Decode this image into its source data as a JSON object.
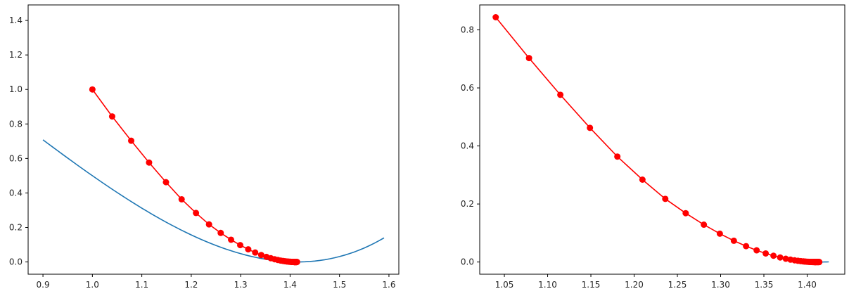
{
  "chart_data": [
    {
      "type": "line",
      "title": "",
      "xlabel": "",
      "ylabel": "",
      "xlim": [
        0.87,
        1.62
      ],
      "ylim": [
        -0.071,
        1.49
      ],
      "xticks": [
        0.9,
        1.0,
        1.1,
        1.2,
        1.3,
        1.4,
        1.5,
        1.6
      ],
      "xtick_labels": [
        "0.9",
        "1.0",
        "1.1",
        "1.2",
        "1.3",
        "1.4",
        "1.5",
        "1.6"
      ],
      "yticks": [
        0.0,
        0.2,
        0.4,
        0.6,
        0.8,
        1.0,
        1.2,
        1.4
      ],
      "ytick_labels": [
        "0.0",
        "0.2",
        "0.4",
        "0.6",
        "0.8",
        "1.0",
        "1.2",
        "1.4"
      ],
      "grid": false,
      "series": [
        {
          "kind": "curve",
          "color": "#1f77b4",
          "function": "(x^2 - 2)^2 / 2",
          "x_range": [
            0.9,
            1.59
          ],
          "step": 0.01
        },
        {
          "kind": "line-markers",
          "color": "#ff0000",
          "x": [
            1.0,
            1.04,
            1.0785,
            1.1147,
            1.1489,
            1.1806,
            1.2096,
            1.236,
            1.2596,
            1.2806,
            1.2991,
            1.3153,
            1.3294,
            1.3416,
            1.3521,
            1.3611,
            1.3688,
            1.3753,
            1.3808,
            1.3855,
            1.3894,
            1.3927,
            1.3955,
            1.3978,
            1.3997,
            1.4013,
            1.4027,
            1.4038,
            1.4048,
            1.4056,
            1.4062,
            1.4068,
            1.4072,
            1.4076,
            1.4079,
            1.4082,
            1.4084,
            1.4086,
            1.4088,
            1.4089,
            1.409,
            1.4091,
            1.4092,
            1.4093,
            1.4094,
            1.4095,
            1.4096,
            1.4097,
            1.4098,
            1.4099,
            1.41,
            1.4101,
            1.4102,
            1.4103,
            1.4104,
            1.4105,
            1.4106,
            1.4108,
            1.411,
            1.4112,
            1.4114,
            1.4116,
            1.4118,
            1.412,
            1.4122,
            1.4124,
            1.4126,
            1.4128,
            1.413,
            1.4132,
            1.4134,
            1.4136,
            1.4138,
            1.414
          ],
          "y": [
            1.0,
            0.8436,
            0.7028,
            0.5762,
            0.4624,
            0.3633,
            0.2839,
            0.2177,
            0.1683,
            0.1288,
            0.0976,
            0.0733,
            0.0546,
            0.0403,
            0.0296,
            0.0216,
            0.0157,
            0.0113,
            0.0082,
            0.0059,
            0.0042,
            0.003,
            0.0021,
            0.0015,
            0.0011,
            0.0008,
            0.0005,
            0.0004,
            0.0003,
            0.0002,
            0.0001,
            0.0001,
            0.0001,
            0.0,
            0.0,
            0.0,
            0.0,
            0.0,
            0.0,
            0.0,
            0.0,
            0.0,
            0.0,
            0.0,
            0.0,
            0.0,
            0.0,
            0.0,
            0.0,
            0.0,
            0.0,
            0.0,
            0.0,
            0.0,
            0.0,
            0.0,
            0.0,
            0.0,
            0.0,
            0.0,
            0.0,
            0.0,
            0.0,
            0.0,
            0.0,
            0.0,
            0.0,
            0.0,
            0.0,
            0.0,
            0.0,
            0.0,
            0.0,
            0.0
          ]
        }
      ]
    },
    {
      "type": "line",
      "title": "",
      "xlabel": "",
      "ylabel": "",
      "xlim": [
        1.0215,
        1.4435
      ],
      "ylim": [
        -0.042,
        0.886
      ],
      "xticks": [
        1.05,
        1.1,
        1.15,
        1.2,
        1.25,
        1.3,
        1.35,
        1.4
      ],
      "xtick_labels": [
        "1.05",
        "1.10",
        "1.15",
        "1.20",
        "1.25",
        "1.30",
        "1.35",
        "1.40"
      ],
      "yticks": [
        0.0,
        0.2,
        0.4,
        0.6,
        0.8
      ],
      "ytick_labels": [
        "0.0",
        "0.2",
        "0.4",
        "0.6",
        "0.8"
      ],
      "grid": false,
      "series": [
        {
          "kind": "curve",
          "color": "#1f77b4",
          "function": "(x^2 - 2)^2 / 2",
          "x_range": [
            1.41,
            1.425
          ],
          "step": 0.001
        },
        {
          "kind": "line-markers",
          "color": "#ff0000",
          "x": [
            1.04,
            1.0785,
            1.1147,
            1.1489,
            1.1806,
            1.2096,
            1.236,
            1.2596,
            1.2806,
            1.2991,
            1.3153,
            1.3294,
            1.3416,
            1.3521,
            1.3611,
            1.3688,
            1.3753,
            1.3808,
            1.3855,
            1.3894,
            1.3927,
            1.3955,
            1.3978,
            1.3997,
            1.4013,
            1.4027,
            1.4038,
            1.4048,
            1.4056,
            1.4062,
            1.4068,
            1.4072,
            1.4076,
            1.4079,
            1.4082,
            1.4084,
            1.4086,
            1.4088,
            1.4089,
            1.409,
            1.4091,
            1.4092,
            1.4093,
            1.4094,
            1.4095,
            1.4096,
            1.4097,
            1.4098,
            1.4099,
            1.41,
            1.4102,
            1.4104,
            1.4106,
            1.4108,
            1.411,
            1.4112,
            1.4114,
            1.4116,
            1.4118,
            1.412,
            1.4122,
            1.4124,
            1.4126,
            1.4128,
            1.413,
            1.4132,
            1.4134,
            1.4136,
            1.4138,
            1.414
          ],
          "y": [
            0.8436,
            0.7028,
            0.5762,
            0.4624,
            0.3633,
            0.2839,
            0.2177,
            0.1683,
            0.1288,
            0.0976,
            0.0733,
            0.0546,
            0.0403,
            0.0296,
            0.0216,
            0.0157,
            0.0113,
            0.0082,
            0.0059,
            0.0042,
            0.003,
            0.0021,
            0.0015,
            0.0011,
            0.0008,
            0.0005,
            0.0004,
            0.0003,
            0.0002,
            0.0001,
            0.0001,
            0.0001,
            0.0,
            0.0,
            0.0,
            0.0,
            0.0,
            0.0,
            0.0,
            0.0,
            0.0,
            0.0,
            0.0,
            0.0,
            0.0,
            0.0,
            0.0,
            0.0,
            0.0,
            0.0,
            0.0,
            0.0,
            0.0,
            0.0,
            0.0,
            0.0,
            0.0,
            0.0,
            0.0,
            0.0,
            0.0,
            0.0,
            0.0,
            0.0,
            0.0,
            0.0,
            0.0,
            0.0,
            0.0,
            0.0
          ]
        }
      ]
    }
  ]
}
